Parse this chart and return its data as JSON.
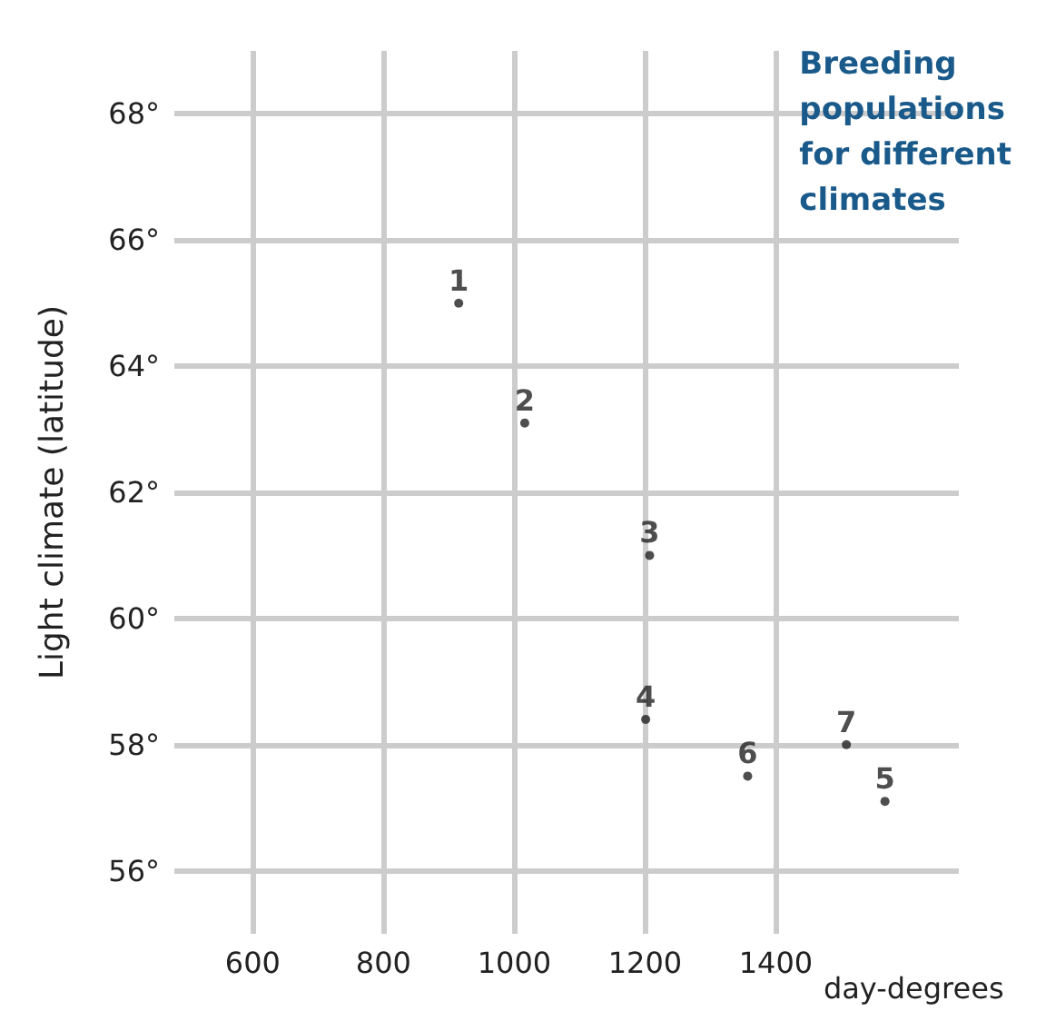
{
  "chart_data": {
    "type": "scatter",
    "title": "Breeding\npopulations\nfor different\nclimates",
    "xlabel": "day-degrees",
    "ylabel": "Light climate (latitude)",
    "x": [
      915,
      1016,
      1207,
      1201,
      1567,
      1357,
      1508
    ],
    "values": [
      65.0,
      63.1,
      61.0,
      58.4,
      57.1,
      57.5,
      58.0
    ],
    "annotations": [
      {
        "text": "1",
        "x": 915,
        "y": 65.0
      },
      {
        "text": "2",
        "x": 1016,
        "y": 63.1
      },
      {
        "text": "3",
        "x": 1207,
        "y": 61.0
      },
      {
        "text": "4",
        "x": 1201,
        "y": 58.4
      },
      {
        "text": "5",
        "x": 1567,
        "y": 57.1
      },
      {
        "text": "6",
        "x": 1357,
        "y": 57.5
      },
      {
        "text": "7",
        "x": 1508,
        "y": 58.0
      }
    ],
    "color": "#222222",
    "marker": "circle",
    "xlim": [
      480,
      1680
    ],
    "xticks": [
      600,
      800,
      1000,
      1200,
      1400
    ],
    "ylim": [
      55,
      69
    ],
    "yticks": [
      {
        "value": 56,
        "label": "56°"
      },
      {
        "value": 58,
        "label": "58°"
      },
      {
        "value": 60,
        "label": "60°"
      },
      {
        "value": 62,
        "label": "62°"
      },
      {
        "value": 64,
        "label": "64°"
      },
      {
        "value": 66,
        "label": "66°"
      },
      {
        "value": 68,
        "label": "68°"
      }
    ],
    "grid": true
  }
}
